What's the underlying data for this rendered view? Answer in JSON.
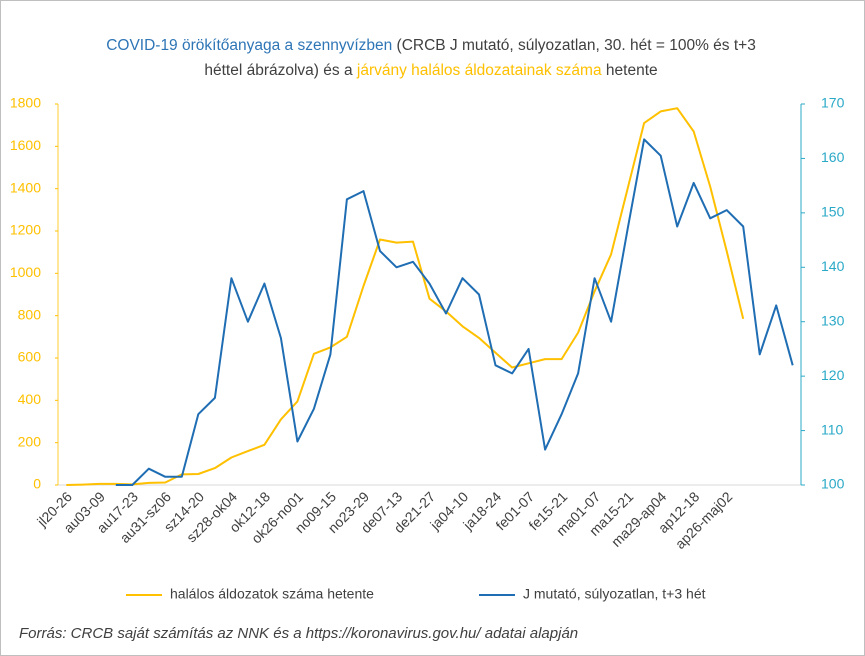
{
  "chart_data": {
    "type": "line",
    "title_parts": [
      {
        "text": "COVID-19 örökítőanyaga a szennyvízben",
        "color": "#2e75b6"
      },
      {
        "text": " (CRCB J mutató, súlyozatlan, 30. hét = 100% és t+3 héttel ábrázolva) és a ",
        "color": "#404040"
      },
      {
        "text": "járvány halálos áldozatainak száma",
        "color": "#ffc000"
      },
      {
        "text": " hetente",
        "color": "#404040"
      }
    ],
    "categories": [
      "jl20-26",
      null,
      "au03-09",
      null,
      "au17-23",
      null,
      "au31-sz06",
      null,
      "sz14-20",
      null,
      "sz28-ok04",
      null,
      "ok12-18",
      null,
      "ok26-no01",
      null,
      "no09-15",
      null,
      "no23-29",
      null,
      "de07-13",
      null,
      "de21-27",
      null,
      "ja04-10",
      null,
      "ja18-24",
      null,
      "fe01-07",
      null,
      "fe15-21",
      null,
      "ma01-07",
      null,
      "ma15-21",
      null,
      "ma29-ap04",
      null,
      "ap12-18",
      null,
      "ap26-maj02",
      null,
      null,
      null,
      null
    ],
    "series": [
      {
        "name": "halálos áldozatok száma hetente",
        "color": "#ffc000",
        "axis": "y",
        "values": [
          0,
          2,
          5,
          5,
          3,
          10,
          12,
          50,
          52,
          80,
          130,
          160,
          190,
          310,
          395,
          620,
          650,
          700,
          940,
          1160,
          1145,
          1150,
          880,
          820,
          750,
          695,
          625,
          555,
          575,
          595,
          595,
          720,
          915,
          1090,
          1400,
          1710,
          1765,
          1780,
          1670,
          1410,
          1105,
          785,
          null,
          null,
          null
        ]
      },
      {
        "name": "J mutató, súlyozatlan, t+3 hét",
        "color": "#1f6db3",
        "axis": "y2",
        "values": [
          null,
          null,
          null,
          100,
          100,
          103,
          101.5,
          101.5,
          113,
          116,
          138,
          130,
          137,
          127,
          108,
          114,
          124,
          152.5,
          154,
          143,
          140,
          141,
          137,
          131.5,
          138,
          135,
          122,
          120.5,
          125,
          106.5,
          113,
          120.5,
          138,
          130,
          147,
          163.5,
          160.5,
          147.5,
          155.5,
          149,
          150.5,
          147.5,
          124,
          133,
          122
        ]
      }
    ],
    "ylim": [
      0,
      1800
    ],
    "yticks": [
      0,
      200,
      400,
      600,
      800,
      1000,
      1200,
      1400,
      1600,
      1800
    ],
    "y2lim": [
      100,
      170
    ],
    "y2ticks": [
      100,
      110,
      120,
      130,
      140,
      150,
      160,
      170
    ],
    "y_color": "#ffc000",
    "y2_color": "#2aa9c7",
    "legend": "bottom",
    "grid": false,
    "source": "Forrás: CRCB saját számítás az NNK és a https://koronavirus.gov.hu/ adatai alapján"
  }
}
